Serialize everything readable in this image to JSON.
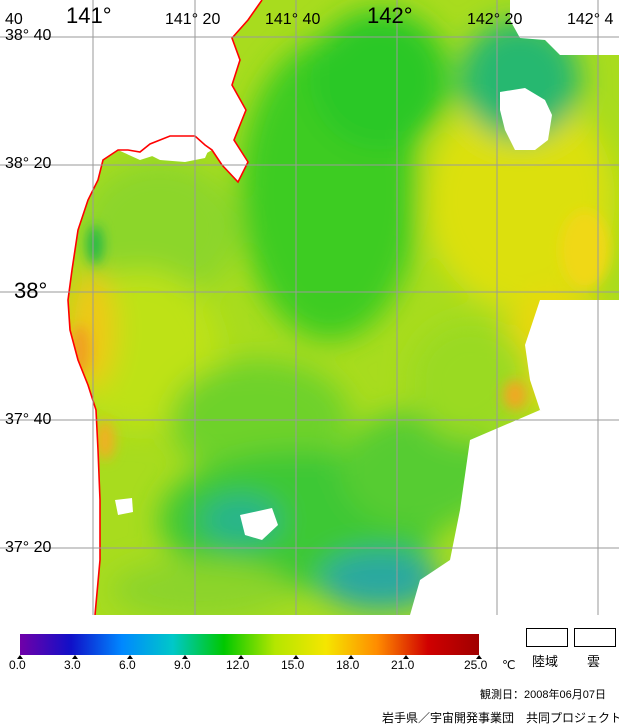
{
  "map": {
    "lon_labels": [
      "40",
      "141°",
      "141° 20",
      "141° 40",
      "142°",
      "142° 20",
      "142° 4"
    ],
    "lat_labels": [
      "38° 40",
      "38° 20",
      "38°",
      "37° 40",
      "37° 20"
    ],
    "land_color": "#ffffff",
    "coast_color": "#ff0000",
    "grid_color": "#9a9a9a"
  },
  "legend": {
    "colorbar_ticks": [
      "0.0",
      "3.0",
      "6.0",
      "9.0",
      "12.0",
      "15.0",
      "18.0",
      "21.0",
      "25.0"
    ],
    "unit": "℃",
    "land_label": "陸域",
    "cloud_label": "雲",
    "colorbar_stops": [
      "#7000a8",
      "#1010c8",
      "#0088ff",
      "#00c8c8",
      "#00c800",
      "#b4e600",
      "#f5e600",
      "#ff8c00",
      "#d00000",
      "#a00000"
    ]
  },
  "footer": {
    "observation_date": "観測日：2008年06月07日",
    "credit": "岩手県／宇宙開発事業団　共同プロジェクト"
  }
}
